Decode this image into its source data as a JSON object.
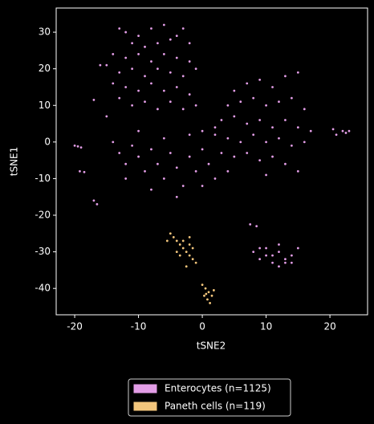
{
  "chart_data": {
    "type": "scatter",
    "xlabel": "tSNE2",
    "ylabel": "tSNE1",
    "xlim": [
      -22.9,
      25.9
    ],
    "ylim": [
      -47.2,
      36.6
    ],
    "xticks": [
      -20,
      -10,
      0,
      10,
      20
    ],
    "yticks": [
      -40,
      -30,
      -20,
      -10,
      0,
      10,
      20,
      30
    ],
    "grid": false,
    "legend": "below",
    "series": [
      {
        "name": "Enterocytes (n=1125)",
        "color": "#e29de6",
        "x": [
          -13,
          -12,
          -10,
          -8,
          -6,
          -3,
          -4,
          -11,
          -9,
          -7,
          -5,
          -2,
          -14,
          -12,
          -10,
          -8,
          -6,
          -4,
          -2,
          -15,
          -13,
          -11,
          -9,
          -7,
          -5,
          -3,
          -1,
          -16,
          -14,
          -12,
          -10,
          -8,
          -6,
          -4,
          -2,
          -13,
          -11,
          -9,
          -7,
          -5,
          -3,
          -1,
          -17,
          -15,
          5,
          7,
          9,
          11,
          13,
          15,
          4,
          6,
          8,
          10,
          12,
          14,
          16,
          3,
          5,
          7,
          9,
          11,
          13,
          15,
          17,
          2,
          4,
          6,
          8,
          10,
          12,
          14,
          16,
          5,
          7,
          9,
          11,
          13,
          15,
          10,
          -14,
          -13,
          -12,
          -11,
          -10,
          -9,
          -8,
          -7,
          -6,
          -5,
          -4,
          -3,
          -2,
          -1,
          0,
          1,
          2,
          3,
          0,
          -2,
          -6,
          -10,
          -8,
          -4,
          0,
          4,
          -12,
          2,
          -20,
          -19.5,
          -19,
          -19.2,
          -18.5,
          -17,
          -16.5,
          21,
          22,
          22.5,
          23,
          20.5,
          8,
          9,
          10,
          11,
          12,
          13,
          14,
          15,
          11,
          12,
          13,
          10,
          12,
          14,
          9,
          7.5,
          8.5
        ],
        "values": [
          31,
          30,
          29,
          31,
          32,
          31,
          29,
          27,
          26,
          27,
          28,
          27,
          24,
          23,
          24,
          22,
          24,
          23,
          22,
          21,
          19,
          20,
          18,
          20,
          19,
          18,
          20,
          21,
          16,
          15,
          14,
          16,
          14,
          15,
          13,
          12,
          10,
          11,
          9,
          11,
          9,
          10,
          11.5,
          7,
          14,
          16,
          17,
          15,
          18,
          19,
          10,
          11,
          12,
          10,
          11,
          12,
          9,
          6,
          7,
          5,
          6,
          4,
          6,
          4,
          3,
          2,
          1,
          0,
          2,
          0,
          1,
          -1,
          0,
          -4,
          -3,
          -5,
          -4,
          -6,
          -8,
          -9,
          0,
          -3,
          -6,
          -1,
          -4,
          -8,
          -2,
          -6,
          -10,
          -3,
          -7,
          -12,
          -4,
          -8,
          -2,
          -6,
          -10,
          -3,
          3,
          2,
          1,
          3,
          -13,
          -15,
          -12,
          -8,
          -10,
          4,
          -1,
          -1.2,
          -1.5,
          -8,
          -8.2,
          -16,
          -17,
          2,
          3,
          2.5,
          3,
          3.5,
          -30,
          -32,
          -29,
          -31,
          -30,
          -32,
          -31,
          -29,
          -33,
          -34,
          -33,
          -31,
          -28,
          -33,
          -29,
          -22.5,
          -23
        ]
      },
      {
        "name": "Paneth cells (n=119)",
        "color": "#f3c67c",
        "x": [
          -5,
          -4.5,
          -4,
          -3.5,
          -3,
          -2.5,
          -2,
          -1.5,
          -3,
          -2,
          -4,
          -1,
          -2.5,
          -3.5,
          -1.5,
          -5.5,
          -2,
          0,
          0.5,
          1,
          1.5,
          0.8,
          1.2,
          0.3,
          1.8,
          0.6
        ],
        "values": [
          -25,
          -26,
          -27,
          -28,
          -29,
          -30,
          -31,
          -32,
          -27,
          -28,
          -30,
          -33,
          -34,
          -31,
          -29,
          -27,
          -26,
          -39,
          -40,
          -41,
          -42,
          -43,
          -44,
          -42,
          -40.5,
          -41.5
        ]
      }
    ]
  }
}
